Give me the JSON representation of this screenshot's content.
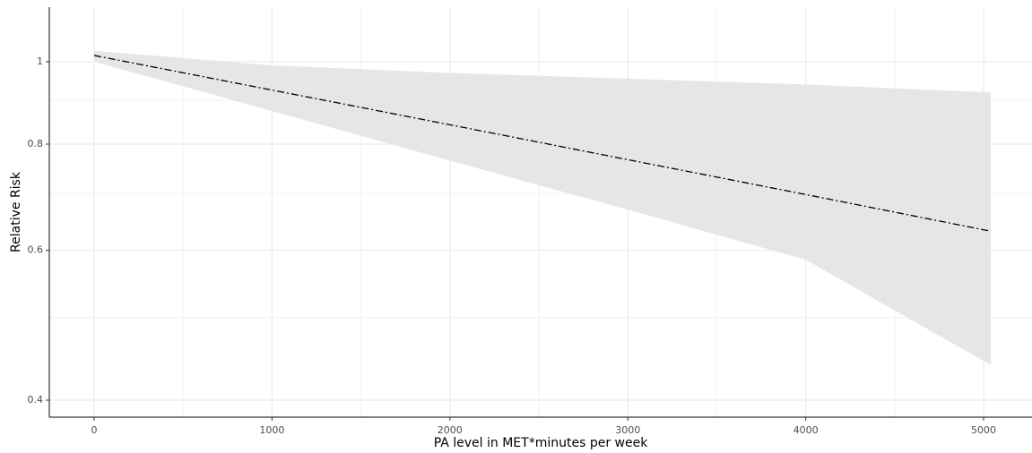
{
  "chart_data": {
    "type": "line",
    "x_label": "PA level in MET*minutes per week",
    "y_label": "Relative Risk",
    "x": [
      0,
      1000,
      2000,
      3000,
      4000,
      5040
    ],
    "values": [
      1.017,
      0.926,
      0.843,
      0.767,
      0.698,
      0.632
    ],
    "lower": [
      1.0,
      0.875,
      0.765,
      0.67,
      0.585,
      0.44
    ],
    "upper": [
      1.03,
      0.99,
      0.97,
      0.955,
      0.94,
      0.92
    ],
    "color": "#000000",
    "band_color": "#e6e6e6",
    "log_y": true,
    "grid": true,
    "xlim": [
      -252,
      5272
    ],
    "ylim": [
      0.382,
      1.159
    ],
    "xticks": [
      0,
      1000,
      2000,
      3000,
      4000,
      5000
    ],
    "yticks": [
      0.4,
      0.6,
      0.8,
      1.0
    ],
    "minor_xticks": [
      500,
      1500,
      2500,
      3500,
      4500
    ],
    "minor_yticks": [
      0.5,
      0.7,
      0.9
    ]
  }
}
